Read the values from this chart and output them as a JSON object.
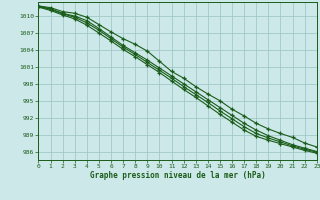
{
  "xlabel": "Graphe pression niveau de la mer (hPa)",
  "bg_color": "#cde8e8",
  "grid_color": "#a0c8c8",
  "line_color": "#1a5c1a",
  "text_color": "#1a5c1a",
  "ylim": [
    984.5,
    1012.5
  ],
  "xlim": [
    0,
    23
  ],
  "yticks": [
    986,
    989,
    992,
    995,
    998,
    1001,
    1004,
    1007,
    1010
  ],
  "xticks": [
    0,
    1,
    2,
    3,
    4,
    5,
    6,
    7,
    8,
    9,
    10,
    11,
    12,
    13,
    14,
    15,
    16,
    17,
    18,
    19,
    20,
    21,
    22,
    23
  ],
  "series": [
    [
      1011.8,
      1011.5,
      1010.8,
      1010.5,
      1009.8,
      1008.5,
      1007.2,
      1006.0,
      1005.0,
      1003.8,
      1002.0,
      1000.2,
      999.0,
      997.5,
      996.2,
      995.0,
      993.5,
      992.3,
      991.0,
      990.0,
      989.2,
      988.5,
      987.5,
      986.8
    ],
    [
      1011.8,
      1011.3,
      1010.5,
      1010.0,
      1009.2,
      1007.8,
      1006.3,
      1004.8,
      1003.5,
      1002.2,
      1000.8,
      999.4,
      998.0,
      996.6,
      995.2,
      993.8,
      992.4,
      991.0,
      989.8,
      988.8,
      988.0,
      987.2,
      986.6,
      986.0
    ],
    [
      1011.7,
      1011.2,
      1010.4,
      1009.8,
      1008.8,
      1007.5,
      1006.0,
      1004.5,
      1003.2,
      1001.8,
      1000.4,
      999.0,
      997.5,
      996.1,
      994.7,
      993.2,
      991.8,
      990.4,
      989.2,
      988.4,
      987.7,
      987.0,
      986.4,
      985.9
    ],
    [
      1011.6,
      1011.0,
      1010.2,
      1009.5,
      1008.4,
      1007.0,
      1005.6,
      1004.1,
      1002.8,
      1001.4,
      1000.0,
      998.5,
      997.0,
      995.6,
      994.1,
      992.6,
      991.2,
      989.8,
      988.7,
      988.0,
      987.4,
      986.8,
      986.2,
      985.7
    ]
  ]
}
